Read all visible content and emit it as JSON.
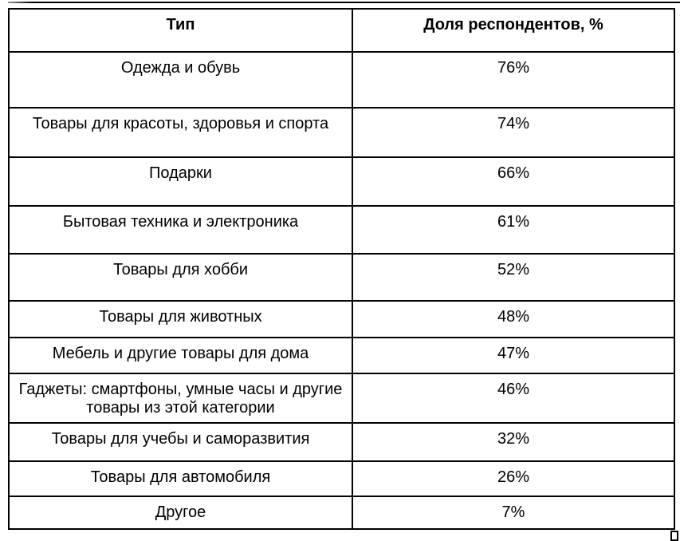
{
  "colors": {
    "background": "#ffffff",
    "border": "#000000",
    "text": "#000000"
  },
  "table": {
    "headers": [
      "Тип",
      "Доля респондентов, %"
    ],
    "rows": [
      {
        "type": "Одежда и обувь",
        "share": "76%"
      },
      {
        "type": "Товары для красоты, здоровья и спорта",
        "share": "74%"
      },
      {
        "type": "Подарки",
        "share": "66%"
      },
      {
        "type": "Бытовая техника и электроника",
        "share": "61%"
      },
      {
        "type": "Товары для хобби",
        "share": "52%"
      },
      {
        "type": "Товары для животных",
        "share": "48%"
      },
      {
        "type": "Мебель и другие товары для дома",
        "share": "47%"
      },
      {
        "type": "Гаджеты: смартфоны, умные часы и другие товары из этой категории",
        "share": "46%"
      },
      {
        "type": "Товары для учебы и саморазвития",
        "share": "32%"
      },
      {
        "type": "Товары для автомобиля",
        "share": "26%"
      },
      {
        "type": "Другое",
        "share": "7%"
      }
    ]
  },
  "chart_data": {
    "type": "table",
    "columns": [
      "Тип",
      "Доля респондентов, %"
    ],
    "categories": [
      "Одежда и обувь",
      "Товары для красоты, здоровья и спорта",
      "Подарки",
      "Бытовая техника и электроника",
      "Товары для хобби",
      "Товары для животных",
      "Мебель и другие товары для дома",
      "Гаджеты: смартфоны, умные часы и другие товары из этой категории",
      "Товары для учебы и саморазвития",
      "Товары для автомобиля",
      "Другое"
    ],
    "values": [
      76,
      74,
      66,
      61,
      52,
      48,
      47,
      46,
      32,
      26,
      7
    ],
    "unit": "%"
  }
}
